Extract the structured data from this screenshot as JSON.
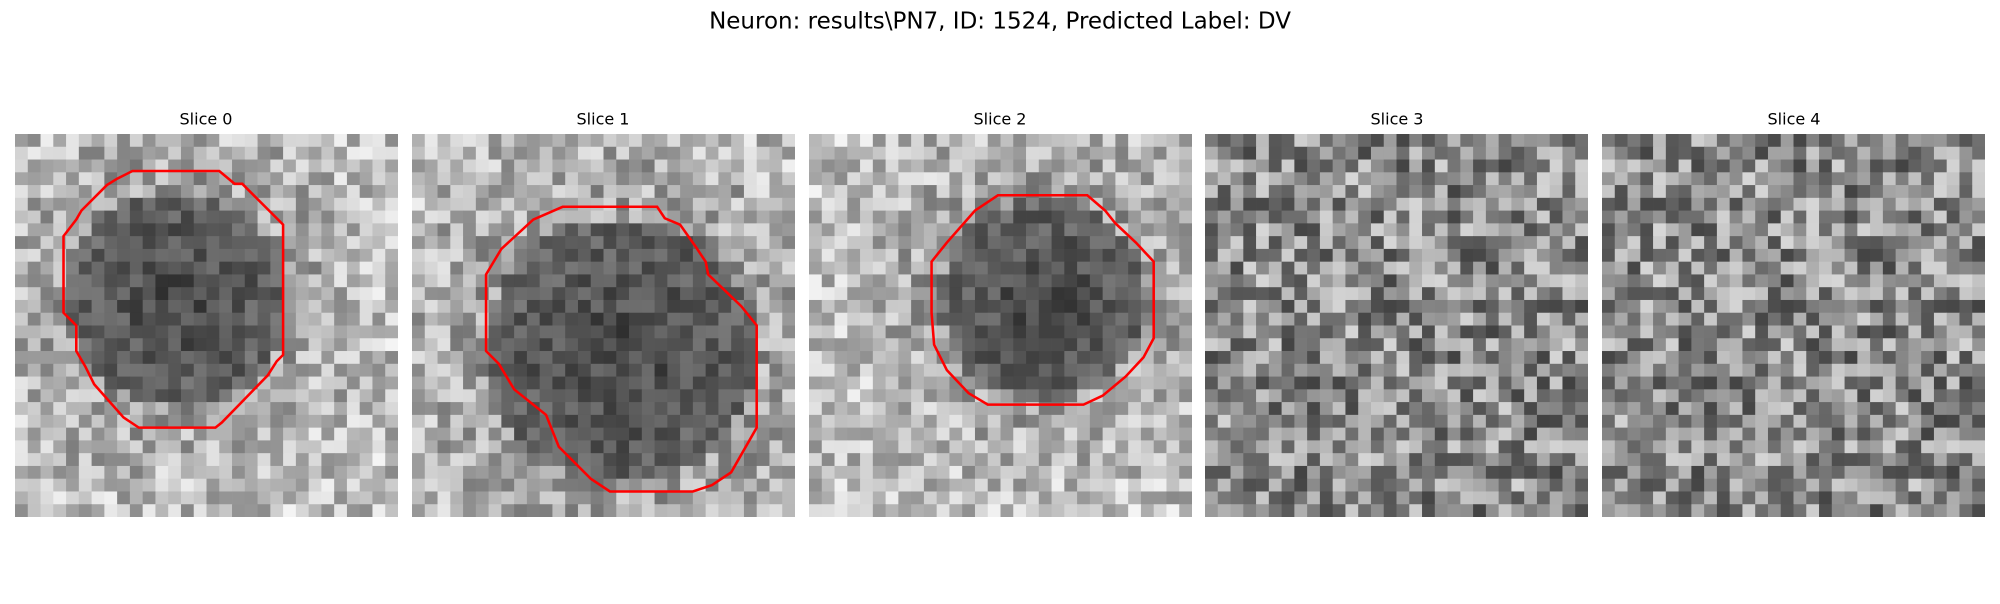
{
  "header": {
    "title": "Neuron: results\\PN7, ID: 1524, Predicted Label: DV"
  },
  "panels": [
    {
      "title": "Slice 0"
    },
    {
      "title": "Slice 1"
    },
    {
      "title": "Slice 2"
    },
    {
      "title": "Slice 3"
    },
    {
      "title": "Slice 4"
    }
  ]
}
